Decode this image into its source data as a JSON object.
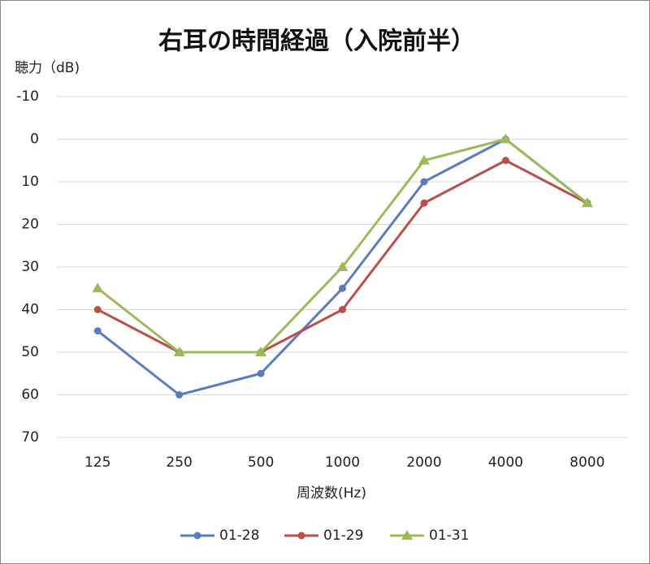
{
  "chart_data": {
    "type": "line",
    "title": "右耳の時間経過（入院前半）",
    "y_label": "聴力（dB)",
    "x_label": "周波数(Hz)",
    "categories": [
      "125",
      "250",
      "500",
      "1000",
      "2000",
      "4000",
      "8000"
    ],
    "series": [
      {
        "name": "01-28",
        "color": "#5b7bbf",
        "marker": "circle",
        "values": [
          45,
          60,
          55,
          35,
          10,
          0,
          15
        ]
      },
      {
        "name": "01-29",
        "color": "#bb4f4b",
        "marker": "circle",
        "values": [
          40,
          50,
          50,
          40,
          15,
          5,
          15
        ]
      },
      {
        "name": "01-31",
        "color": "#9bbb59",
        "marker": "triangle",
        "values": [
          35,
          50,
          50,
          30,
          5,
          0,
          15
        ]
      }
    ],
    "ylim": [
      -10,
      70
    ],
    "yticks": [
      -10,
      0,
      10,
      20,
      30,
      40,
      50,
      60,
      70
    ],
    "y_inverted": true,
    "grid": true,
    "legend": "bottom"
  }
}
